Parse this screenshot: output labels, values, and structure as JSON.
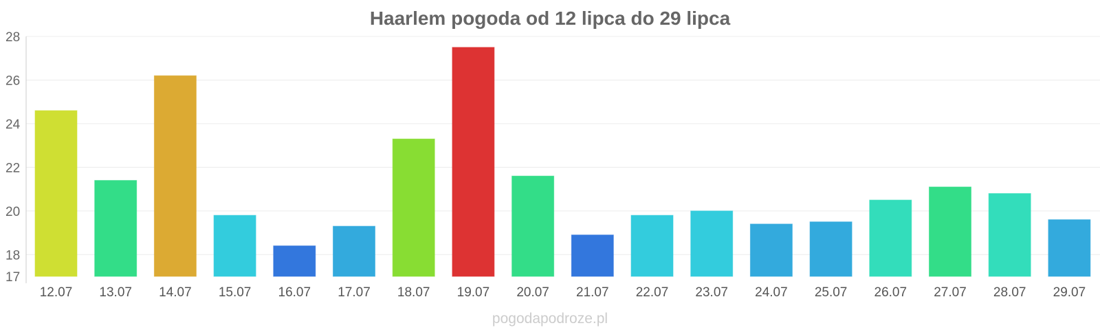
{
  "chart_data": {
    "type": "bar",
    "title": "Haarlem pogoda od 12 lipca do 29 lipca",
    "categories": [
      "12.07",
      "13.07",
      "14.07",
      "15.07",
      "16.07",
      "17.07",
      "18.07",
      "19.07",
      "20.07",
      "21.07",
      "22.07",
      "23.07",
      "24.07",
      "25.07",
      "26.07",
      "27.07",
      "28.07",
      "29.07"
    ],
    "values": [
      24.6,
      21.4,
      26.2,
      19.8,
      18.4,
      19.3,
      23.3,
      27.5,
      21.6,
      18.9,
      19.8,
      20.0,
      19.4,
      19.5,
      20.5,
      21.1,
      20.8,
      19.6
    ],
    "colors": [
      "#cfdf33",
      "#33dd88",
      "#dcaa33",
      "#33ccdd",
      "#3377dd",
      "#33aadd",
      "#88dd33",
      "#dd3333",
      "#33dd88",
      "#3377dd",
      "#33ccdd",
      "#33ccdd",
      "#33aadd",
      "#33aadd",
      "#33ddbb",
      "#33dd88",
      "#33ddbb",
      "#33aadd"
    ],
    "ylim": [
      17,
      28
    ],
    "yticks": [
      17,
      18,
      20,
      22,
      24,
      26,
      28
    ],
    "grid": true,
    "xlabel": "",
    "ylabel": ""
  },
  "watermark": "pogodapodroze.pl"
}
